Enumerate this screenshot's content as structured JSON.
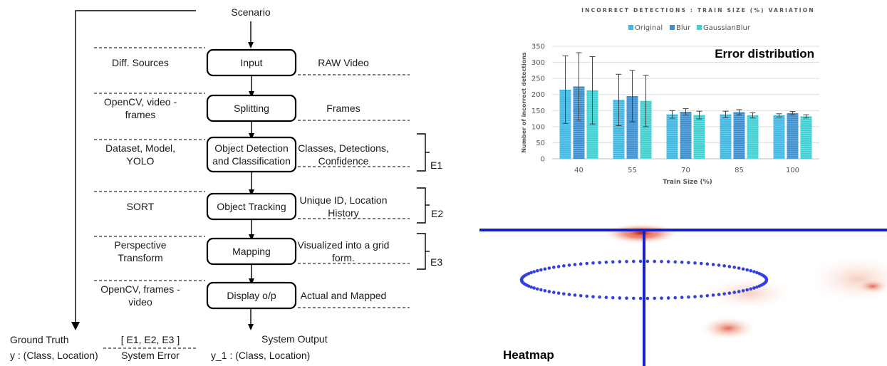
{
  "flow": {
    "scenario": "Scenario",
    "stages": [
      {
        "label_lines": [
          "Input"
        ],
        "left_lines": [
          "Diff. Sources"
        ],
        "right_lines": [
          "RAW Video"
        ]
      },
      {
        "label_lines": [
          "Splitting"
        ],
        "left_lines": [
          "OpenCV, video -",
          "frames"
        ],
        "right_lines": [
          "Frames"
        ]
      },
      {
        "label_lines": [
          "Object Detection",
          "and Classification"
        ],
        "left_lines": [
          "Dataset, Model,",
          "YOLO"
        ],
        "right_lines": [
          "Classes, Detections,",
          "Confidence"
        ]
      },
      {
        "label_lines": [
          "Object Tracking"
        ],
        "left_lines": [
          "SORT"
        ],
        "right_lines": [
          "Unique ID, Location",
          "History"
        ]
      },
      {
        "label_lines": [
          "Mapping"
        ],
        "left_lines": [
          "Perspective",
          "Transform"
        ],
        "right_lines": [
          "Visualized into a grid",
          "form."
        ]
      },
      {
        "label_lines": [
          "Display o/p"
        ],
        "left_lines": [
          "OpenCV, frames -",
          "video"
        ],
        "right_lines": [
          "Actual and Mapped"
        ]
      }
    ],
    "error_marks": [
      "E1",
      "E2",
      "E3"
    ],
    "ground_truth": "Ground Truth",
    "ground_truth_value": "y : (Class, Location)",
    "system_error_value": "[ E1, E2, E3 ]",
    "system_error": "System Error",
    "system_output": "System Output",
    "system_output_value": "y_1 : (Class, Location)"
  },
  "chart_label": "Error distribution",
  "heatmap_label": "Heatmap",
  "chart_data": {
    "type": "bar",
    "title": "INCORRECT DETECTIONS : TRAIN SIZE (%) VARIATION",
    "xlabel": "Train Size (%)",
    "ylabel": "Number of incorrect detections",
    "categories": [
      "40",
      "55",
      "70",
      "85",
      "100"
    ],
    "ylim": [
      0,
      350
    ],
    "yticks": [
      0,
      50,
      100,
      150,
      200,
      250,
      300,
      350
    ],
    "legend_position": "top-center",
    "grid": true,
    "series": [
      {
        "name": "Original",
        "color": "#3fb8e2",
        "values": [
          215,
          183,
          138,
          138,
          135
        ],
        "errors": [
          105,
          80,
          12,
          10,
          5
        ]
      },
      {
        "name": "Blur",
        "color": "#3d8fd0",
        "values": [
          225,
          195,
          146,
          145,
          142
        ],
        "errors": [
          105,
          80,
          10,
          8,
          5
        ]
      },
      {
        "name": "GaussianBlur",
        "color": "#3fd0d3",
        "values": [
          213,
          180,
          136,
          135,
          132
        ],
        "errors": [
          105,
          80,
          12,
          8,
          5
        ]
      }
    ]
  }
}
